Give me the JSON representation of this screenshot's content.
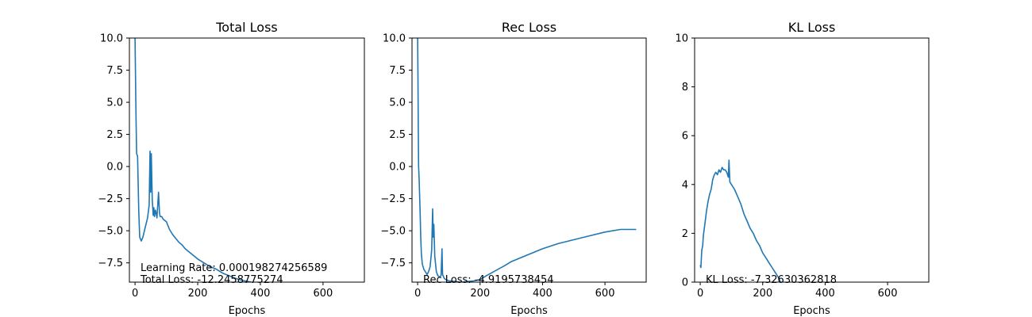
{
  "colors": {
    "line": "#1f77b4",
    "axes": "#000000",
    "background": "#ffffff"
  },
  "chart_data": [
    {
      "type": "line",
      "title": "Total Loss",
      "xlabel": "Epochs",
      "ylabel": "",
      "xlim": [
        -18,
        732
      ],
      "ylim": [
        -9,
        10
      ],
      "grid": false,
      "xticks": [
        0,
        200,
        400,
        600
      ],
      "xtick_labels": [
        "0",
        "200",
        "400",
        "600"
      ],
      "yticks": [
        -7.5,
        -5.0,
        -2.5,
        0.0,
        2.5,
        5.0,
        7.5,
        10.0
      ],
      "ytick_labels": [
        "−7.5",
        "−5.0",
        "−2.5",
        "0.0",
        "2.5",
        "5.0",
        "7.5",
        "10.0"
      ],
      "annotations": [
        "Learning Rate: 0.000198274256589",
        "Total Loss: -12.2458775274"
      ],
      "series": [
        {
          "x": [
            0,
            1,
            2,
            3,
            5,
            8,
            10,
            12,
            15,
            20,
            25,
            30,
            35,
            40,
            45,
            48,
            50,
            52,
            55,
            58,
            60,
            62,
            65,
            68,
            70,
            75,
            78,
            80,
            85,
            90,
            95,
            100,
            110,
            120,
            130,
            140,
            150,
            160,
            170,
            180,
            200,
            220,
            240,
            260,
            280,
            300,
            320,
            340,
            360,
            380
          ],
          "y": [
            10,
            8,
            6,
            4,
            1.0,
            0.8,
            -1.5,
            -3.5,
            -5.5,
            -5.8,
            -5.5,
            -5.0,
            -4.5,
            -4.0,
            -3.0,
            1.2,
            -2.0,
            1.0,
            -2.6,
            -3.8,
            -3.2,
            -3.9,
            -3.4,
            -3.7,
            -4.0,
            -2.0,
            -3.6,
            -3.9,
            -3.9,
            -4.1,
            -4.2,
            -4.3,
            -4.9,
            -5.3,
            -5.6,
            -5.9,
            -6.1,
            -6.4,
            -6.6,
            -6.8,
            -7.2,
            -7.5,
            -7.8,
            -8.0,
            -8.3,
            -8.5,
            -8.7,
            -8.85,
            -8.95,
            -9.05
          ]
        }
      ]
    },
    {
      "type": "line",
      "title": "Rec Loss",
      "xlabel": "Epochs",
      "ylabel": "",
      "xlim": [
        -18,
        732
      ],
      "ylim": [
        -9,
        10
      ],
      "grid": false,
      "xticks": [
        0,
        200,
        400,
        600
      ],
      "xtick_labels": [
        "0",
        "200",
        "400",
        "600"
      ],
      "yticks": [
        -7.5,
        -5.0,
        -2.5,
        0.0,
        2.5,
        5.0,
        7.5,
        10.0
      ],
      "ytick_labels": [
        "−7.5",
        "−5.0",
        "−2.5",
        "0.0",
        "2.5",
        "5.0",
        "7.5",
        "10.0"
      ],
      "annotations": [
        "Rec Loss: -4.9195738454"
      ],
      "series": [
        {
          "x": [
            0,
            1,
            2,
            3,
            5,
            8,
            10,
            12,
            15,
            20,
            25,
            30,
            35,
            40,
            45,
            48,
            50,
            52,
            55,
            60,
            65,
            70,
            75,
            78,
            80,
            85,
            90,
            100,
            120,
            140,
            160,
            180,
            200,
            220,
            250,
            280,
            300,
            350,
            400,
            450,
            500,
            550,
            600,
            650,
            700
          ],
          "y": [
            10,
            7,
            3,
            0,
            -1.0,
            -3.5,
            -5.5,
            -6.8,
            -7.6,
            -8.0,
            -8.2,
            -8.4,
            -8.2,
            -7.8,
            -6.5,
            -3.3,
            -5.5,
            -4.5,
            -7.0,
            -8.2,
            -8.5,
            -8.6,
            -8.5,
            -6.4,
            -8.4,
            -8.7,
            -8.8,
            -8.9,
            -8.95,
            -9.0,
            -8.95,
            -8.9,
            -8.8,
            -8.5,
            -8.1,
            -7.7,
            -7.4,
            -6.9,
            -6.4,
            -6.0,
            -5.7,
            -5.4,
            -5.1,
            -4.9,
            -4.9
          ]
        }
      ]
    },
    {
      "type": "line",
      "title": "KL Loss",
      "xlabel": "Epochs",
      "ylabel": "",
      "xlim": [
        -18,
        732
      ],
      "ylim": [
        0,
        10
      ],
      "grid": false,
      "xticks": [
        0,
        200,
        400,
        600
      ],
      "xtick_labels": [
        "0",
        "200",
        "400",
        "600"
      ],
      "yticks": [
        0,
        2,
        4,
        6,
        8,
        10
      ],
      "ytick_labels": [
        "0",
        "2",
        "4",
        "6",
        "8",
        "10"
      ],
      "annotations": [
        "KL Loss: -7.32630362818"
      ],
      "series": [
        {
          "x": [
            0,
            2,
            5,
            8,
            10,
            15,
            20,
            25,
            30,
            35,
            40,
            45,
            50,
            55,
            60,
            65,
            70,
            75,
            80,
            85,
            90,
            92,
            95,
            100,
            110,
            120,
            130,
            140,
            150,
            160,
            170,
            180,
            190,
            200,
            210,
            220,
            230,
            240,
            250,
            255,
            258
          ],
          "y": [
            0.7,
            0.6,
            1.3,
            1.5,
            1.9,
            2.4,
            2.9,
            3.3,
            3.6,
            3.8,
            4.2,
            4.4,
            4.5,
            4.4,
            4.6,
            4.5,
            4.7,
            4.6,
            4.6,
            4.5,
            4.3,
            5.0,
            4.1,
            4.0,
            3.8,
            3.5,
            3.2,
            2.8,
            2.5,
            2.2,
            2.0,
            1.7,
            1.5,
            1.2,
            1.0,
            0.8,
            0.6,
            0.4,
            0.2,
            0.05,
            0
          ]
        }
      ]
    }
  ]
}
